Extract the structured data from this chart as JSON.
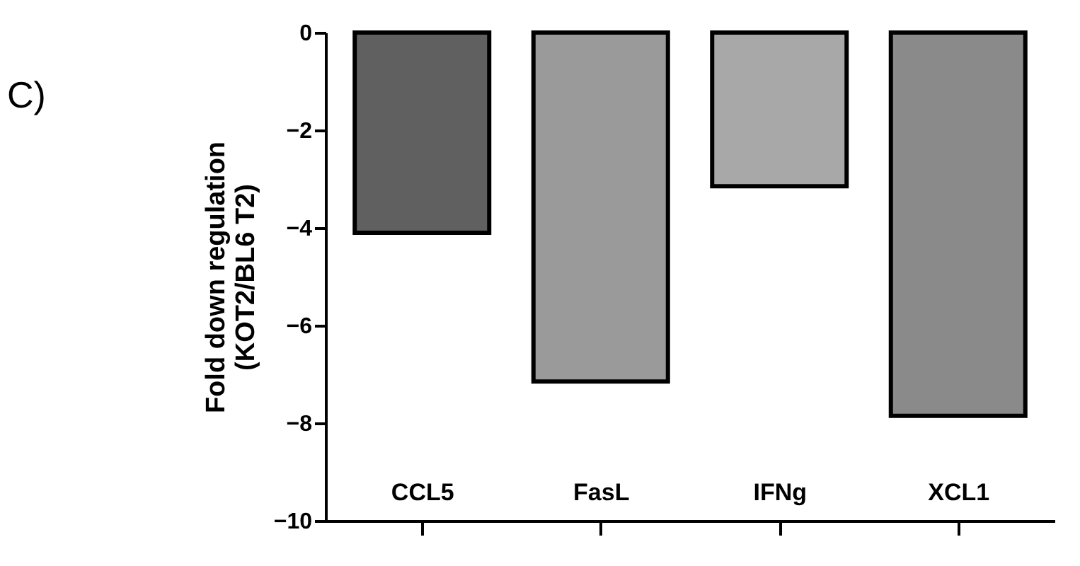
{
  "chart_data": {
    "type": "bar",
    "categories": [
      "CCL5",
      "FasL",
      "IFNg",
      "XCL1"
    ],
    "values": [
      -4.1,
      -7.15,
      -3.15,
      -7.85
    ],
    "colors": [
      "#606060",
      "#9a9a9a",
      "#a8a8a8",
      "#8a8a8a"
    ],
    "ylabel": "Fold down regulation\n(KOT2/BL6 T2)",
    "ylim": [
      -10,
      0
    ],
    "yticks": [
      -10,
      -8,
      -6,
      -4,
      -2,
      0
    ],
    "annotations": [
      "C)"
    ],
    "grid": false
  }
}
